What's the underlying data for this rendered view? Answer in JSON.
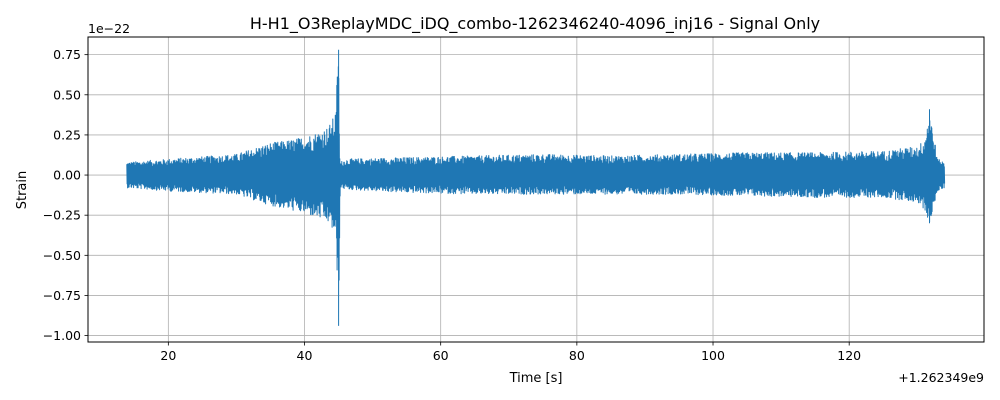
{
  "chart_data": {
    "type": "line",
    "title": "H-H1_O3ReplayMDC_iDQ_combo-1262346240-4096_inj16 - Signal Only",
    "xlabel": "Time [s]",
    "ylabel": "Strain",
    "x_offset_label": "+1.262349e9",
    "y_scale_label": "1e−22",
    "xlim": [
      8.2,
      139.8
    ],
    "ylim": [
      -1.04,
      0.86
    ],
    "grid": true,
    "x_ticks": [
      20,
      40,
      60,
      80,
      100,
      120
    ],
    "x_tick_labels": [
      "20",
      "40",
      "60",
      "80",
      "100",
      "120"
    ],
    "y_ticks": [
      -1.0,
      -0.75,
      -0.5,
      -0.25,
      0.0,
      0.25,
      0.5,
      0.75
    ],
    "y_tick_labels": [
      "−1.00",
      "−0.75",
      "−0.50",
      "−0.25",
      "0.00",
      "0.25",
      "0.50",
      "0.75"
    ],
    "series": [
      {
        "color": "#1f77b4",
        "x_start": 13.9,
        "x_end": 134.0,
        "envelope": {
          "x": [
            13.9,
            20,
            30,
            32,
            35,
            38,
            40,
            42,
            43.5,
            44.5,
            45.0,
            45.2,
            46,
            55,
            65,
            75,
            85,
            95,
            105,
            115,
            125,
            130,
            131,
            131.8,
            133,
            134.0
          ],
          "upper": [
            0.08,
            0.1,
            0.13,
            0.16,
            0.2,
            0.22,
            0.24,
            0.27,
            0.3,
            0.38,
            0.78,
            0.08,
            0.1,
            0.11,
            0.12,
            0.13,
            0.12,
            0.13,
            0.14,
            0.14,
            0.15,
            0.18,
            0.22,
            0.41,
            0.1,
            0.08
          ],
          "lower": [
            -0.08,
            -0.1,
            -0.12,
            -0.15,
            -0.19,
            -0.22,
            -0.24,
            -0.27,
            -0.3,
            -0.38,
            -0.94,
            -0.08,
            -0.09,
            -0.11,
            -0.12,
            -0.12,
            -0.12,
            -0.12,
            -0.13,
            -0.14,
            -0.14,
            -0.17,
            -0.22,
            -0.3,
            -0.1,
            -0.08
          ]
        }
      }
    ]
  }
}
